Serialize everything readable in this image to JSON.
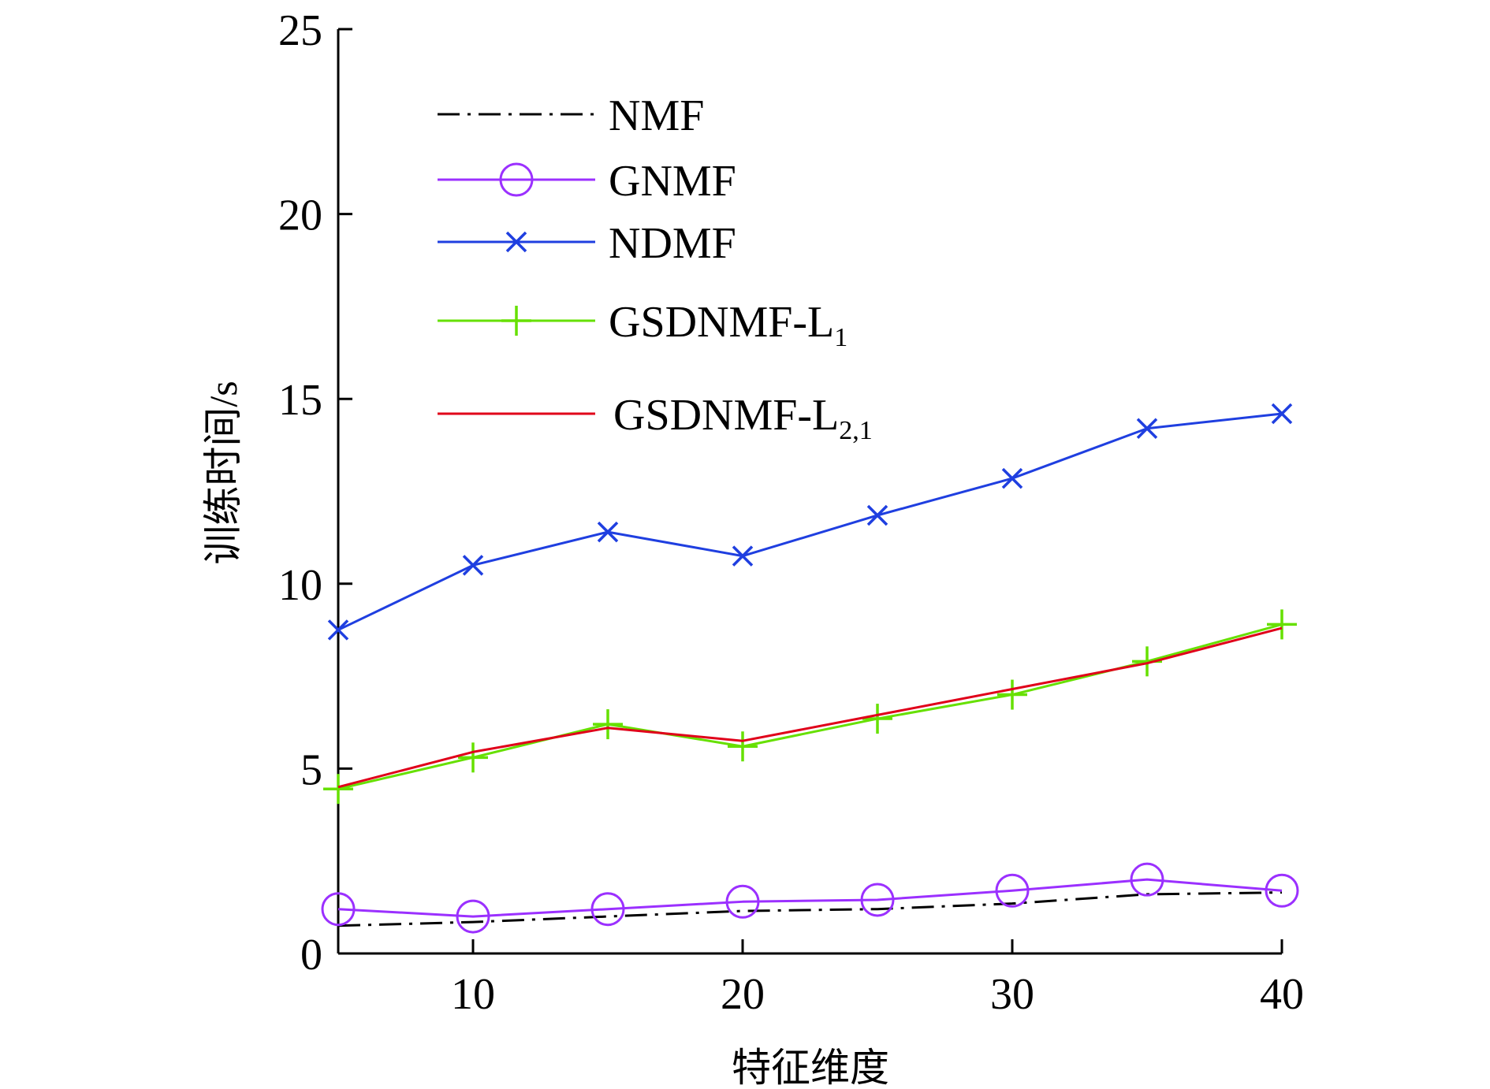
{
  "chart_data": {
    "type": "line",
    "title": "",
    "xlabel": "特征维度",
    "ylabel": "训练时间/s",
    "xlim": [
      5,
      40
    ],
    "ylim": [
      0,
      25
    ],
    "xticks": [
      10,
      20,
      30,
      40
    ],
    "yticks": [
      0,
      5,
      10,
      15,
      20,
      25
    ],
    "grid": false,
    "legend_position": "top-left",
    "x": [
      5,
      10,
      15,
      20,
      25,
      30,
      35,
      40
    ],
    "series": [
      {
        "name": "NMF",
        "label_main": "NMF",
        "label_sub": "",
        "color": "#000000",
        "marker": "none",
        "dash": "dashdot",
        "values": [
          0.75,
          0.85,
          1.0,
          1.15,
          1.2,
          1.35,
          1.6,
          1.65
        ]
      },
      {
        "name": "GNMF",
        "label_main": "GNMF",
        "label_sub": "",
        "color": "#9b30ff",
        "marker": "circle",
        "dash": "solid",
        "values": [
          1.2,
          1.0,
          1.2,
          1.4,
          1.45,
          1.7,
          2.0,
          1.7
        ]
      },
      {
        "name": "NDMF",
        "label_main": "NDMF",
        "label_sub": "",
        "color": "#1f3fe0",
        "marker": "x",
        "dash": "solid",
        "values": [
          8.75,
          10.5,
          11.4,
          10.75,
          11.85,
          12.85,
          14.2,
          14.6
        ]
      },
      {
        "name": "GSDNMF-L1",
        "label_main": "GSDNMF-L",
        "label_sub": "1",
        "color": "#66e000",
        "marker": "plus",
        "dash": "solid",
        "values": [
          4.45,
          5.3,
          6.2,
          5.6,
          6.35,
          7.0,
          7.9,
          8.9
        ]
      },
      {
        "name": "GSDNMF-L2,1",
        "label_main": "GSDNMF-L",
        "label_sub": "2,1",
        "color": "#e0001a",
        "marker": "none",
        "dash": "solid",
        "values": [
          4.5,
          5.45,
          6.1,
          5.75,
          6.45,
          7.15,
          7.85,
          8.8
        ]
      }
    ]
  }
}
